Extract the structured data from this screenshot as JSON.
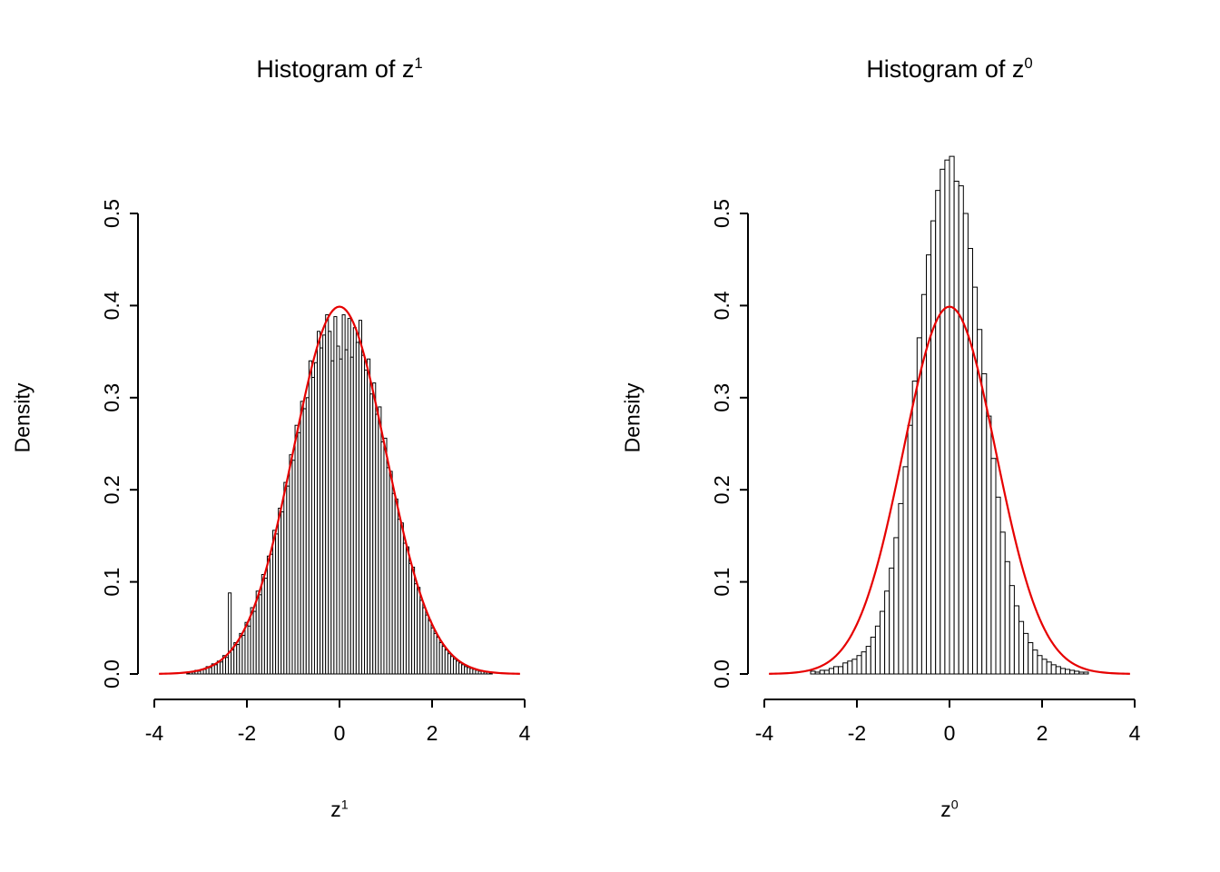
{
  "page": {
    "background": "#ffffff"
  },
  "chart_data": [
    {
      "type": "histogram",
      "title": "Histogram of z",
      "title_sup": "1",
      "xlabel": "z",
      "xlabel_sup": "1",
      "ylabel": "Density",
      "xlim": [
        -4,
        4
      ],
      "ylim": [
        0,
        0.5
      ],
      "xticks": [
        "-4",
        "-2",
        "0",
        "2",
        "4"
      ],
      "xtick_values": [
        -4,
        -2,
        0,
        2,
        4
      ],
      "yticks": [
        "0.0",
        "0.1",
        "0.2",
        "0.3",
        "0.4",
        "0.5"
      ],
      "ytick_values": [
        0,
        0.1,
        0.2,
        0.3,
        0.4,
        0.5
      ],
      "grid": false,
      "legend": "none",
      "bar_fill": "#ffffff",
      "bar_stroke": "#000000",
      "bins": {
        "start": -3.3,
        "width": 0.06,
        "densities": [
          0.001,
          0.002,
          0.002,
          0.004,
          0.003,
          0.005,
          0.005,
          0.008,
          0.007,
          0.011,
          0.01,
          0.014,
          0.013,
          0.02,
          0.018,
          0.088,
          0.026,
          0.034,
          0.032,
          0.044,
          0.042,
          0.056,
          0.052,
          0.072,
          0.068,
          0.09,
          0.086,
          0.108,
          0.104,
          0.128,
          0.13,
          0.156,
          0.152,
          0.18,
          0.176,
          0.208,
          0.204,
          0.238,
          0.232,
          0.27,
          0.262,
          0.296,
          0.288,
          0.3,
          0.34,
          0.322,
          0.338,
          0.372,
          0.354,
          0.368,
          0.39,
          0.372,
          0.34,
          0.388,
          0.356,
          0.342,
          0.39,
          0.352,
          0.386,
          0.344,
          0.376,
          0.36,
          0.384,
          0.346,
          0.33,
          0.342,
          0.304,
          0.316,
          0.282,
          0.29,
          0.252,
          0.256,
          0.224,
          0.22,
          0.196,
          0.19,
          0.168,
          0.164,
          0.142,
          0.138,
          0.12,
          0.116,
          0.098,
          0.094,
          0.08,
          0.072,
          0.064,
          0.058,
          0.05,
          0.044,
          0.04,
          0.034,
          0.03,
          0.026,
          0.022,
          0.019,
          0.016,
          0.014,
          0.012,
          0.01,
          0.008,
          0.007,
          0.006,
          0.005,
          0.004,
          0.003,
          0.003,
          0.002,
          0.002,
          0.001
        ]
      },
      "curve": {
        "distribution": "normal",
        "mean": 0,
        "sd": 1,
        "peak": 0.3989,
        "color": "#e60000",
        "x_min": -3.9,
        "x_max": 3.9
      }
    },
    {
      "type": "histogram",
      "title": "Histogram of z",
      "title_sup": "0",
      "xlabel": "z",
      "xlabel_sup": "0",
      "ylabel": "Density",
      "xlim": [
        -4,
        4
      ],
      "ylim": [
        0,
        0.5
      ],
      "xticks": [
        "-4",
        "-2",
        "0",
        "2",
        "4"
      ],
      "xtick_values": [
        -4,
        -2,
        0,
        2,
        4
      ],
      "yticks": [
        "0.0",
        "0.1",
        "0.2",
        "0.3",
        "0.4",
        "0.5"
      ],
      "ytick_values": [
        0,
        0.1,
        0.2,
        0.3,
        0.4,
        0.5
      ],
      "grid": false,
      "legend": "none",
      "bar_fill": "#ffffff",
      "bar_stroke": "#000000",
      "bins": {
        "start": -3.0,
        "width": 0.1,
        "densities": [
          0.003,
          0.002,
          0.004,
          0.004,
          0.006,
          0.008,
          0.008,
          0.012,
          0.014,
          0.016,
          0.02,
          0.024,
          0.03,
          0.04,
          0.052,
          0.068,
          0.09,
          0.115,
          0.148,
          0.185,
          0.225,
          0.27,
          0.318,
          0.365,
          0.412,
          0.455,
          0.492,
          0.525,
          0.548,
          0.558,
          0.562,
          0.535,
          0.53,
          0.5,
          0.462,
          0.42,
          0.374,
          0.326,
          0.28,
          0.234,
          0.192,
          0.154,
          0.122,
          0.096,
          0.074,
          0.057,
          0.044,
          0.034,
          0.026,
          0.02,
          0.016,
          0.013,
          0.01,
          0.008,
          0.006,
          0.005,
          0.004,
          0.003,
          0.002,
          0.002
        ]
      },
      "curve": {
        "distribution": "normal",
        "mean": 0,
        "sd": 1,
        "peak": 0.3989,
        "color": "#e60000",
        "x_min": -3.9,
        "x_max": 3.9
      }
    }
  ]
}
